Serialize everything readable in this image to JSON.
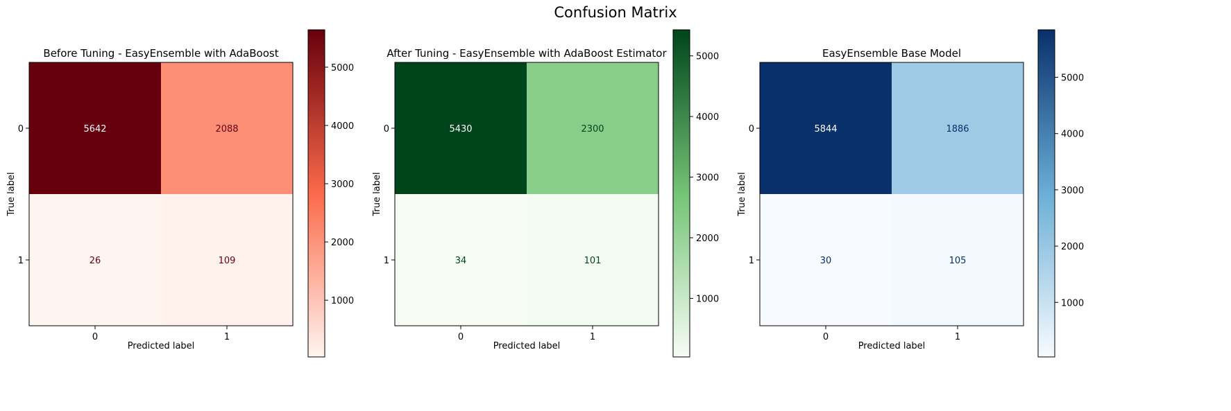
{
  "suptitle": "Confusion Matrix",
  "chart_data": [
    {
      "type": "heatmap",
      "title": "Before Tuning - EasyEnsemble with AdaBoost",
      "xlabel": "Predicted label",
      "ylabel": "True label",
      "x_ticks": [
        "0",
        "1"
      ],
      "y_ticks": [
        "0",
        "1"
      ],
      "matrix": [
        [
          5642,
          2088
        ],
        [
          26,
          109
        ]
      ],
      "colormap": "Reds",
      "colorbar_ticks": [
        1000,
        2000,
        3000,
        4000,
        5000
      ],
      "colorbar_range": [
        26,
        5642
      ],
      "colors": {
        "low": "#fff5f0",
        "mid": "#fb6a4a",
        "high": "#67000d"
      }
    },
    {
      "type": "heatmap",
      "title": "After Tuning - EasyEnsemble with AdaBoost Estimator",
      "xlabel": "Predicted label",
      "ylabel": "True label",
      "x_ticks": [
        "0",
        "1"
      ],
      "y_ticks": [
        "0",
        "1"
      ],
      "matrix": [
        [
          5430,
          2300
        ],
        [
          34,
          101
        ]
      ],
      "colormap": "Greens",
      "colorbar_ticks": [
        1000,
        2000,
        3000,
        4000,
        5000
      ],
      "colorbar_range": [
        34,
        5430
      ],
      "colors": {
        "low": "#f7fcf5",
        "mid": "#74c476",
        "high": "#00441b"
      }
    },
    {
      "type": "heatmap",
      "title": "EasyEnsemble Base Model",
      "xlabel": "Predicted label",
      "ylabel": "True label",
      "x_ticks": [
        "0",
        "1"
      ],
      "y_ticks": [
        "0",
        "1"
      ],
      "matrix": [
        [
          5844,
          1886
        ],
        [
          30,
          105
        ]
      ],
      "colormap": "Blues",
      "colorbar_ticks": [
        1000,
        2000,
        3000,
        4000,
        5000
      ],
      "colorbar_range": [
        30,
        5844
      ],
      "colors": {
        "low": "#f7fbff",
        "mid": "#6baed6",
        "high": "#08306b"
      }
    }
  ]
}
